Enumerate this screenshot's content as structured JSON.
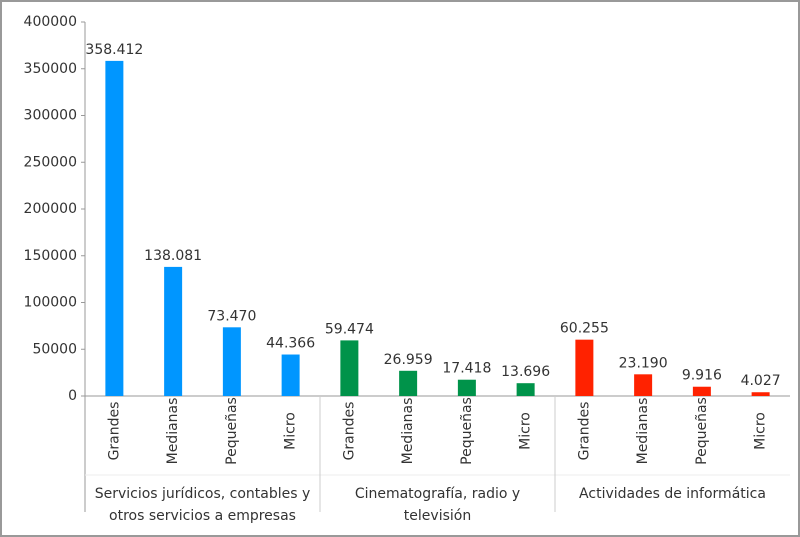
{
  "chart_data": {
    "type": "bar",
    "ylim": [
      0,
      400000
    ],
    "yticks": [
      0,
      50000,
      100000,
      150000,
      200000,
      250000,
      300000,
      350000,
      400000
    ],
    "groups": [
      {
        "label": "Servicios jurídicos, contables y otros servicios a empresas",
        "color": "#0096ff",
        "categories": [
          "Grandes",
          "Medianas",
          "Pequeñas",
          "Micro"
        ],
        "values": [
          358412,
          138081,
          73470,
          44366
        ],
        "value_labels": [
          "358.412",
          "138.081",
          "73.470",
          "44.366"
        ]
      },
      {
        "label": "Cinematografía, radio y televisión",
        "color": "#00934a",
        "categories": [
          "Grandes",
          "Medianas",
          "Pequeñas",
          "Micro"
        ],
        "values": [
          59474,
          26959,
          17418,
          13696
        ],
        "value_labels": [
          "59.474",
          "26.959",
          "17.418",
          "13.696"
        ]
      },
      {
        "label": "Actividades de informática",
        "color": "#ff2200",
        "categories": [
          "Grandes",
          "Medianas",
          "Pequeñas",
          "Micro"
        ],
        "values": [
          60255,
          23190,
          9916,
          4027
        ],
        "value_labels": [
          "60.255",
          "23.190",
          "9.916",
          "4.027"
        ]
      }
    ]
  }
}
